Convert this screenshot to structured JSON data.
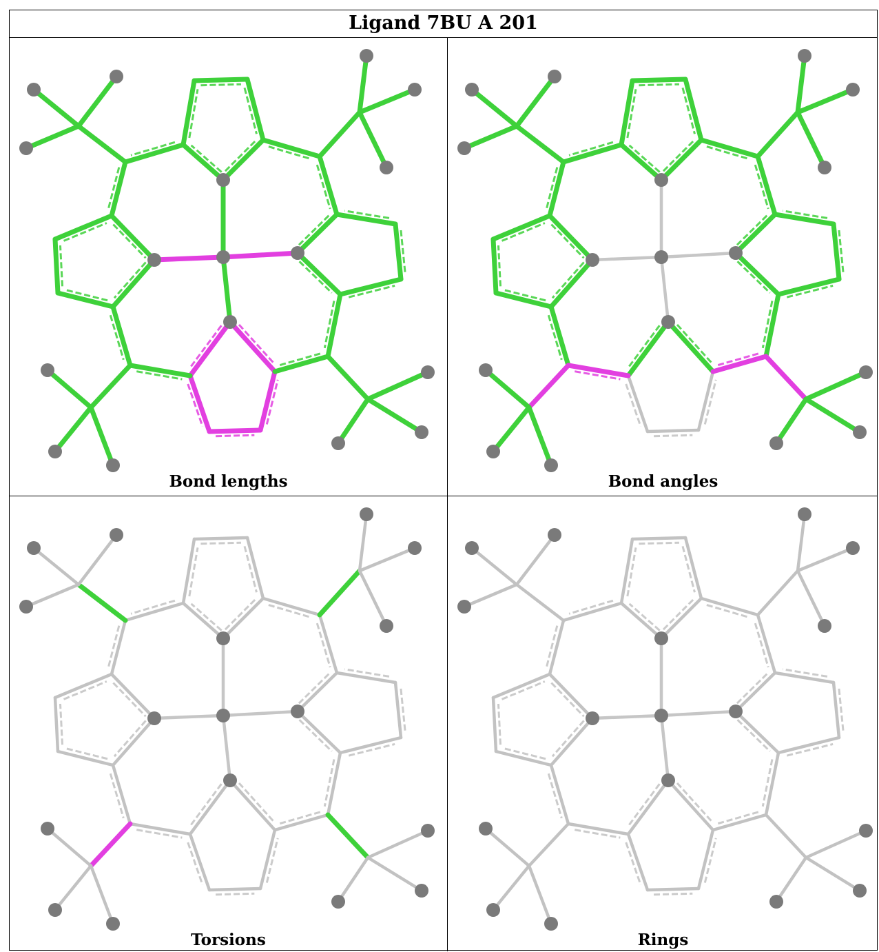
{
  "title": "Ligand 7BU A 201",
  "colors": {
    "green": "#3ed13a",
    "magenta": "#e23fe0",
    "gray_bond": "#c2c2c2",
    "atom": "#7a7a7a",
    "metal_bond": "#c6c6c6"
  },
  "panels": [
    {
      "caption": "Bond lengths",
      "highlights": {
        "m1": "magenta",
        "m2": "magenta",
        "m3": "green",
        "m4": "green",
        "rD": "magenta",
        "default": "green",
        "sub": "green",
        "methyl": "green",
        "exoC1": "green",
        "exoC2": "green",
        "exoC3": "green",
        "exoC4": "green"
      }
    },
    {
      "caption": "Bond angles",
      "highlights": {
        "m1": "gray",
        "m2": "gray",
        "m3": "gray",
        "m4": "gray",
        "rD": "gray",
        "rD_inner": "green",
        "default": "green",
        "sub": "green",
        "methyl": "green",
        "exoC1": "green",
        "exoC2": "green",
        "exoC3": "magenta",
        "exoC4": "magenta",
        "bridge3": "magenta",
        "bridge4": "magenta"
      }
    },
    {
      "caption": "Torsions",
      "highlights": {
        "m1": "gray",
        "m2": "gray",
        "m3": "gray",
        "m4": "gray",
        "rD": "gray",
        "default": "gray",
        "sub": "gray",
        "methyl": "gray",
        "exoC1": "green",
        "exoC2": "green",
        "exoC3": "magenta",
        "exoC4": "green"
      }
    },
    {
      "caption": "Rings",
      "highlights": {
        "m1": "gray",
        "m2": "gray",
        "m3": "gray",
        "m4": "gray",
        "rD": "gray",
        "default": "gray",
        "sub": "gray",
        "methyl": "gray",
        "exoC1": "gray",
        "exoC2": "gray",
        "exoC3": "gray",
        "exoC4": "gray"
      }
    }
  ]
}
